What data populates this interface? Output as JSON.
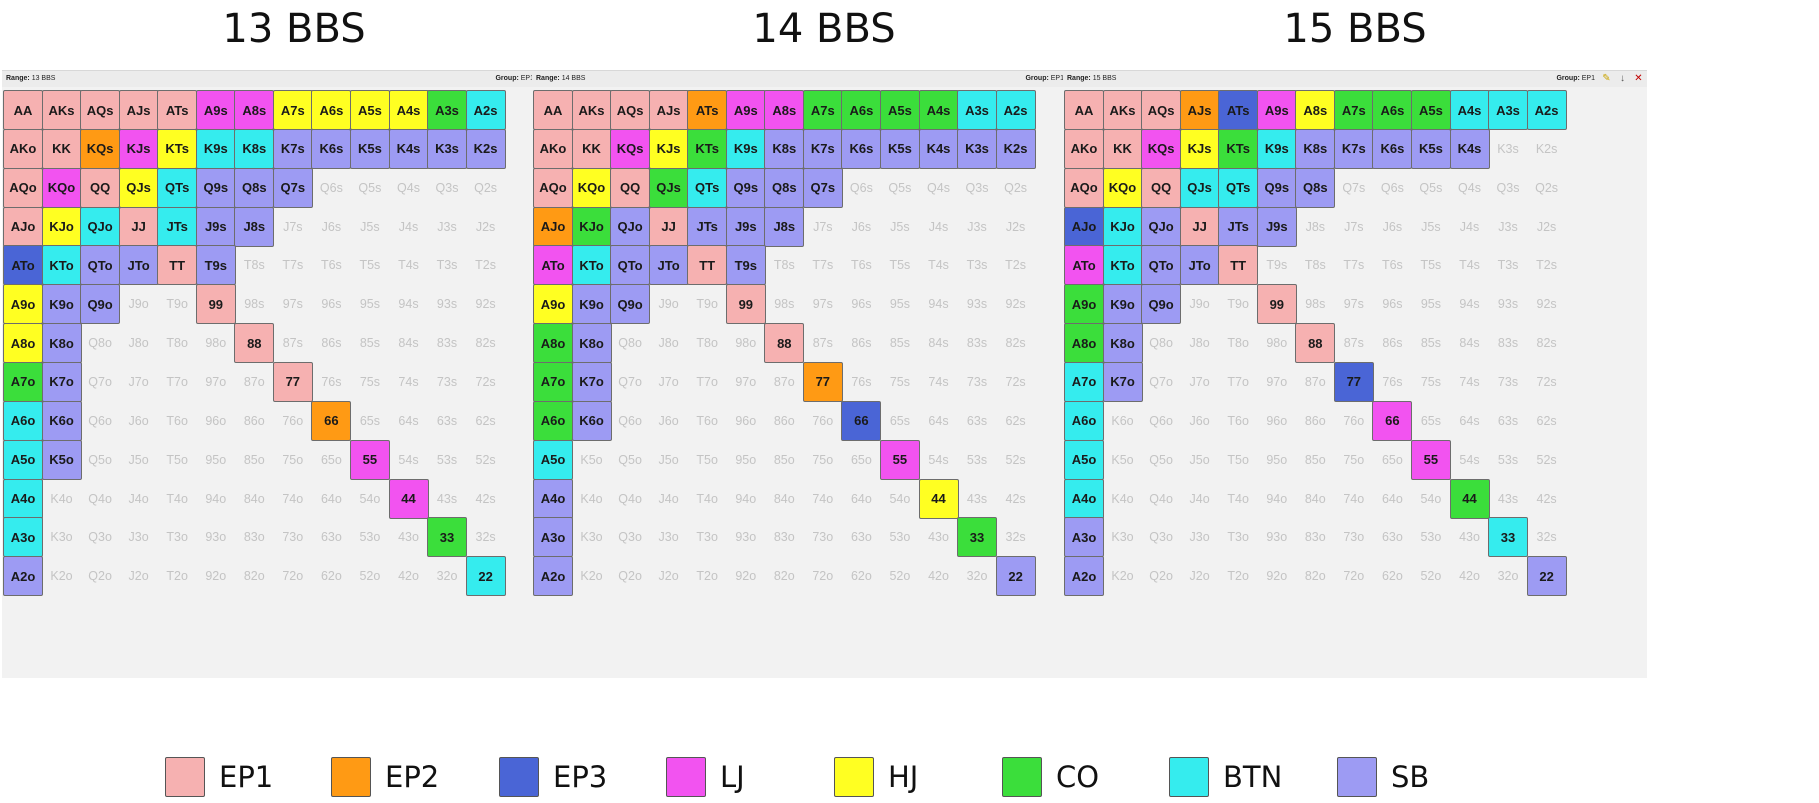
{
  "colors": {
    "EP1": "#f6b1b1",
    "EP2": "#ff9a14",
    "EP3": "#4a65d6",
    "LJ": "#f253f0",
    "HJ": "#ffff22",
    "CO": "#3bde3b",
    "BTN": "#35ecee",
    "SB": "#9d9bf3"
  },
  "legend": [
    {
      "key": "EP1",
      "label": "EP1"
    },
    {
      "key": "EP2",
      "label": "EP2"
    },
    {
      "key": "EP3",
      "label": "EP3"
    },
    {
      "key": "LJ",
      "label": "LJ"
    },
    {
      "key": "HJ",
      "label": "HJ"
    },
    {
      "key": "CO",
      "label": "CO"
    },
    {
      "key": "BTN",
      "label": "BTN"
    },
    {
      "key": "SB",
      "label": "SB"
    }
  ],
  "ranks": [
    "A",
    "K",
    "Q",
    "J",
    "T",
    "9",
    "8",
    "7",
    "6",
    "5",
    "4",
    "3",
    "2"
  ],
  "toolbar_icons": [
    "edit-icon",
    "pin-icon",
    "close-icon"
  ],
  "panels": [
    {
      "title": "13 BBS",
      "range_label": "Range:",
      "range_value": "13 BBS",
      "group_label": "Group:",
      "group_value": "EP1",
      "rows": [
        [
          "EP1",
          "EP1",
          "EP1",
          "EP1",
          "EP1",
          "LJ",
          "LJ",
          "HJ",
          "HJ",
          "HJ",
          "HJ",
          "CO",
          "BTN"
        ],
        [
          "EP1",
          "EP1",
          "EP2",
          "LJ",
          "HJ",
          "BTN",
          "BTN",
          "SB",
          "SB",
          "SB",
          "SB",
          "SB",
          "SB"
        ],
        [
          "EP1",
          "LJ",
          "EP1",
          "HJ",
          "BTN",
          "SB",
          "SB",
          "SB",
          "",
          "",
          "",
          "",
          ""
        ],
        [
          "EP1",
          "HJ",
          "BTN",
          "EP1",
          "BTN",
          "SB",
          "SB",
          "",
          "",
          "",
          "",
          "",
          ""
        ],
        [
          "EP3",
          "BTN",
          "SB",
          "SB",
          "EP1",
          "SB",
          "",
          "",
          "",
          "",
          "",
          "",
          ""
        ],
        [
          "HJ",
          "SB",
          "SB",
          "",
          "",
          "EP1",
          "",
          "",
          "",
          "",
          "",
          "",
          ""
        ],
        [
          "HJ",
          "SB",
          "",
          "",
          "",
          "",
          "EP1",
          "",
          "",
          "",
          "",
          "",
          ""
        ],
        [
          "CO",
          "SB",
          "",
          "",
          "",
          "",
          "",
          "EP1",
          "",
          "",
          "",
          "",
          ""
        ],
        [
          "BTN",
          "SB",
          "",
          "",
          "",
          "",
          "",
          "",
          "EP2",
          "",
          "",
          "",
          ""
        ],
        [
          "BTN",
          "SB",
          "",
          "",
          "",
          "",
          "",
          "",
          "",
          "LJ",
          "",
          "",
          ""
        ],
        [
          "BTN",
          "",
          "",
          "",
          "",
          "",
          "",
          "",
          "",
          "",
          "LJ",
          "",
          ""
        ],
        [
          "BTN",
          "",
          "",
          "",
          "",
          "",
          "",
          "",
          "",
          "",
          "",
          "CO",
          ""
        ],
        [
          "SB",
          "",
          "",
          "",
          "",
          "",
          "",
          "",
          "",
          "",
          "",
          "",
          "BTN"
        ]
      ]
    },
    {
      "title": "14 BBS",
      "range_label": "Range:",
      "range_value": "14 BBS",
      "group_label": "Group:",
      "group_value": "EP1",
      "rows": [
        [
          "EP1",
          "EP1",
          "EP1",
          "EP1",
          "EP2",
          "LJ",
          "LJ",
          "CO",
          "CO",
          "CO",
          "CO",
          "BTN",
          "BTN"
        ],
        [
          "EP1",
          "EP1",
          "LJ",
          "HJ",
          "CO",
          "BTN",
          "SB",
          "SB",
          "SB",
          "SB",
          "SB",
          "SB",
          "SB"
        ],
        [
          "EP1",
          "HJ",
          "EP1",
          "CO",
          "BTN",
          "SB",
          "SB",
          "SB",
          "",
          "",
          "",
          "",
          ""
        ],
        [
          "EP2",
          "CO",
          "SB",
          "EP1",
          "SB",
          "SB",
          "SB",
          "",
          "",
          "",
          "",
          "",
          ""
        ],
        [
          "LJ",
          "BTN",
          "SB",
          "SB",
          "EP1",
          "SB",
          "",
          "",
          "",
          "",
          "",
          "",
          ""
        ],
        [
          "HJ",
          "SB",
          "SB",
          "",
          "",
          "EP1",
          "",
          "",
          "",
          "",
          "",
          "",
          ""
        ],
        [
          "CO",
          "SB",
          "",
          "",
          "",
          "",
          "EP1",
          "",
          "",
          "",
          "",
          "",
          ""
        ],
        [
          "CO",
          "SB",
          "",
          "",
          "",
          "",
          "",
          "EP2",
          "",
          "",
          "",
          "",
          ""
        ],
        [
          "CO",
          "SB",
          "",
          "",
          "",
          "",
          "",
          "",
          "EP3",
          "",
          "",
          "",
          ""
        ],
        [
          "BTN",
          "",
          "",
          "",
          "",
          "",
          "",
          "",
          "",
          "LJ",
          "",
          "",
          ""
        ],
        [
          "SB",
          "",
          "",
          "",
          "",
          "",
          "",
          "",
          "",
          "",
          "HJ",
          "",
          ""
        ],
        [
          "SB",
          "",
          "",
          "",
          "",
          "",
          "",
          "",
          "",
          "",
          "",
          "CO",
          ""
        ],
        [
          "SB",
          "",
          "",
          "",
          "",
          "",
          "",
          "",
          "",
          "",
          "",
          "",
          "SB"
        ]
      ]
    },
    {
      "title": "15 BBS",
      "range_label": "Range:",
      "range_value": "15 BBS",
      "group_label": "Group:",
      "group_value": "EP1",
      "rows": [
        [
          "EP1",
          "EP1",
          "EP1",
          "EP2",
          "EP3",
          "LJ",
          "HJ",
          "CO",
          "CO",
          "CO",
          "BTN",
          "BTN",
          "BTN"
        ],
        [
          "EP1",
          "EP1",
          "LJ",
          "HJ",
          "CO",
          "BTN",
          "SB",
          "SB",
          "SB",
          "SB",
          "SB",
          "",
          ""
        ],
        [
          "EP1",
          "HJ",
          "EP1",
          "BTN",
          "BTN",
          "SB",
          "SB",
          "",
          "",
          "",
          "",
          "",
          ""
        ],
        [
          "EP3",
          "BTN",
          "SB",
          "EP1",
          "SB",
          "SB",
          "",
          "",
          "",
          "",
          "",
          "",
          ""
        ],
        [
          "LJ",
          "BTN",
          "SB",
          "SB",
          "EP1",
          "",
          "",
          "",
          "",
          "",
          "",
          "",
          ""
        ],
        [
          "CO",
          "SB",
          "SB",
          "",
          "",
          "EP1",
          "",
          "",
          "",
          "",
          "",
          "",
          ""
        ],
        [
          "CO",
          "SB",
          "",
          "",
          "",
          "",
          "EP1",
          "",
          "",
          "",
          "",
          "",
          ""
        ],
        [
          "BTN",
          "SB",
          "",
          "",
          "",
          "",
          "",
          "EP3",
          "",
          "",
          "",
          "",
          ""
        ],
        [
          "BTN",
          "",
          "",
          "",
          "",
          "",
          "",
          "",
          "LJ",
          "",
          "",
          "",
          ""
        ],
        [
          "BTN",
          "",
          "",
          "",
          "",
          "",
          "",
          "",
          "",
          "LJ",
          "",
          "",
          ""
        ],
        [
          "BTN",
          "",
          "",
          "",
          "",
          "",
          "",
          "",
          "",
          "",
          "CO",
          "",
          ""
        ],
        [
          "SB",
          "",
          "",
          "",
          "",
          "",
          "",
          "",
          "",
          "",
          "",
          "BTN",
          ""
        ],
        [
          "SB",
          "",
          "",
          "",
          "",
          "",
          "",
          "",
          "",
          "",
          "",
          "",
          "SB"
        ]
      ]
    }
  ]
}
